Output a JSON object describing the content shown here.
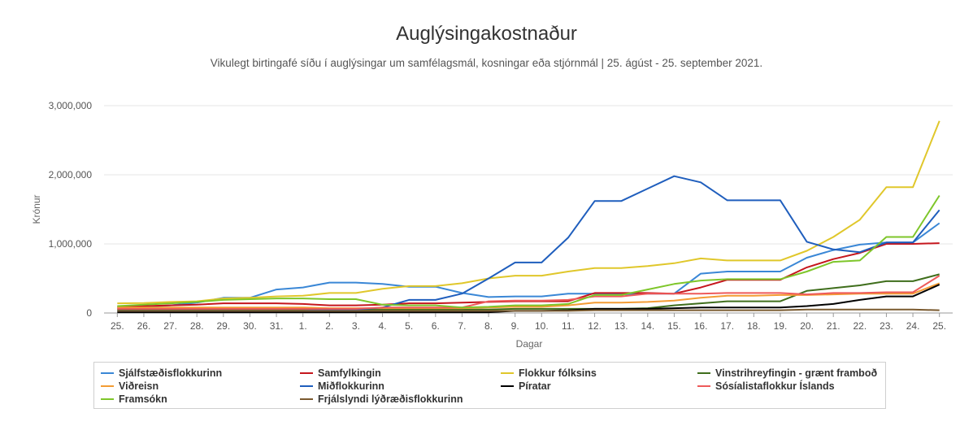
{
  "chart_data": {
    "type": "line",
    "title": "Auglýsingakostnaður",
    "subtitle": "Vikulegt birtingafé síðu í auglýsingar um samfélagsmál, kosningar eða stjórnmál | 25. ágúst - 25. september 2021.",
    "xlabel": "Dagar",
    "ylabel": "Krónur",
    "ylim": [
      0,
      3000000
    ],
    "yticks": [
      "0",
      "1,000,000",
      "2,000,000",
      "3,000,000"
    ],
    "ytick_values": [
      0,
      1000000,
      2000000,
      3000000
    ],
    "grid": "horizontal",
    "legend_position": "bottom",
    "categories": [
      "25.",
      "26.",
      "27.",
      "28.",
      "29.",
      "30.",
      "31.",
      "1.",
      "2.",
      "3.",
      "4.",
      "5.",
      "6.",
      "7.",
      "8.",
      "9.",
      "10.",
      "11.",
      "12.",
      "13.",
      "14.",
      "15.",
      "16.",
      "17.",
      "18.",
      "19.",
      "20.",
      "21.",
      "22.",
      "23.",
      "24.",
      "25."
    ],
    "series": [
      {
        "name": "Sjálfstæðisflokkurinn",
        "color": "#3a87d6",
        "values": [
          70000,
          90000,
          110000,
          150000,
          220000,
          220000,
          340000,
          370000,
          440000,
          440000,
          420000,
          380000,
          380000,
          290000,
          230000,
          240000,
          240000,
          280000,
          280000,
          270000,
          280000,
          280000,
          570000,
          600000,
          600000,
          600000,
          800000,
          910000,
          990000,
          1020000,
          1020000,
          1300000
        ]
      },
      {
        "name": "Samfylkingin",
        "color": "#c5161d",
        "values": [
          90000,
          100000,
          110000,
          120000,
          140000,
          140000,
          140000,
          130000,
          110000,
          110000,
          120000,
          140000,
          140000,
          150000,
          160000,
          170000,
          170000,
          170000,
          290000,
          290000,
          290000,
          280000,
          370000,
          480000,
          480000,
          480000,
          660000,
          780000,
          870000,
          1000000,
          1000000,
          1010000
        ]
      },
      {
        "name": "Flokkur fólksins",
        "color": "#e0c72b",
        "values": [
          140000,
          145000,
          160000,
          170000,
          210000,
          220000,
          240000,
          250000,
          290000,
          290000,
          350000,
          390000,
          390000,
          430000,
          500000,
          540000,
          540000,
          600000,
          650000,
          650000,
          680000,
          720000,
          790000,
          760000,
          760000,
          760000,
          900000,
          1100000,
          1350000,
          1820000,
          1820000,
          2780000
        ]
      },
      {
        "name": "Vinstrihreyfingin - grænt framboð",
        "color": "#3f6e1c",
        "values": [
          50000,
          50000,
          50000,
          50000,
          50000,
          50000,
          50000,
          50000,
          50000,
          50000,
          50000,
          50000,
          50000,
          50000,
          50000,
          60000,
          60000,
          60000,
          60000,
          60000,
          70000,
          110000,
          140000,
          170000,
          170000,
          170000,
          320000,
          360000,
          400000,
          460000,
          460000,
          560000
        ]
      },
      {
        "name": "Viðreisn",
        "color": "#f39c34",
        "values": [
          80000,
          80000,
          80000,
          80000,
          80000,
          80000,
          80000,
          80000,
          70000,
          70000,
          70000,
          70000,
          70000,
          70000,
          80000,
          90000,
          90000,
          110000,
          150000,
          150000,
          160000,
          180000,
          220000,
          250000,
          250000,
          260000,
          260000,
          270000,
          280000,
          280000,
          280000,
          430000
        ]
      },
      {
        "name": "Miðflokkurinn",
        "color": "#1f5ebd",
        "values": [
          30000,
          30000,
          30000,
          30000,
          30000,
          30000,
          30000,
          30000,
          50000,
          50000,
          80000,
          190000,
          190000,
          280000,
          500000,
          730000,
          730000,
          1090000,
          1620000,
          1620000,
          1800000,
          1980000,
          1890000,
          1630000,
          1630000,
          1630000,
          1030000,
          920000,
          880000,
          1020000,
          1020000,
          1490000
        ]
      },
      {
        "name": "Píratar",
        "color": "#000000",
        "values": [
          10000,
          10000,
          10000,
          10000,
          10000,
          10000,
          10000,
          10000,
          10000,
          10000,
          10000,
          10000,
          10000,
          10000,
          10000,
          30000,
          30000,
          40000,
          60000,
          60000,
          60000,
          70000,
          80000,
          80000,
          80000,
          80000,
          100000,
          130000,
          190000,
          240000,
          240000,
          410000
        ]
      },
      {
        "name": "Sósíalistaflokkur Íslands",
        "color": "#ee5a5a",
        "values": [
          60000,
          60000,
          60000,
          60000,
          60000,
          60000,
          60000,
          60000,
          60000,
          60000,
          80000,
          80000,
          80000,
          80000,
          170000,
          180000,
          180000,
          190000,
          240000,
          240000,
          280000,
          280000,
          280000,
          290000,
          290000,
          290000,
          270000,
          290000,
          290000,
          300000,
          300000,
          540000
        ]
      },
      {
        "name": "Framsókn",
        "color": "#7ec62a",
        "values": [
          100000,
          120000,
          140000,
          160000,
          190000,
          200000,
          210000,
          210000,
          200000,
          200000,
          120000,
          110000,
          110000,
          80000,
          90000,
          110000,
          110000,
          130000,
          260000,
          260000,
          340000,
          420000,
          470000,
          490000,
          490000,
          490000,
          600000,
          740000,
          760000,
          1100000,
          1100000,
          1700000
        ]
      },
      {
        "name": "Frjálslyndi lýðræðisflokkurinn",
        "color": "#7a5a2f",
        "values": [
          30000,
          30000,
          30000,
          30000,
          30000,
          30000,
          30000,
          30000,
          30000,
          30000,
          30000,
          30000,
          30000,
          30000,
          30000,
          30000,
          30000,
          30000,
          40000,
          40000,
          40000,
          40000,
          40000,
          40000,
          40000,
          40000,
          50000,
          50000,
          50000,
          50000,
          50000,
          40000
        ]
      }
    ]
  }
}
